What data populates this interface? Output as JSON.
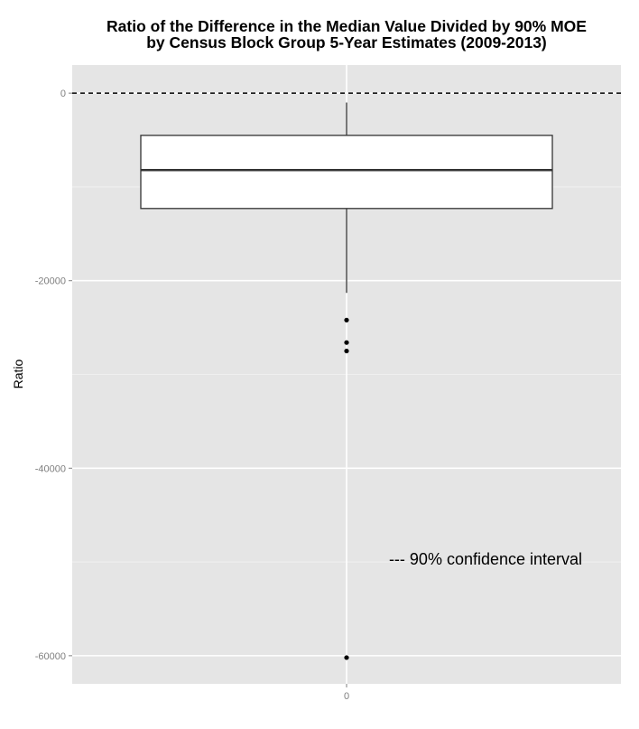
{
  "chart_data": {
    "type": "box",
    "title_lines": [
      "Ratio of the Difference in the Median Value Divided by 90% MOE",
      "by Census Block Group 5-Year Estimates (2009-2013)"
    ],
    "xlabel": "",
    "ylabel": "Ratio",
    "categories": [
      "0"
    ],
    "ylim": [
      -63000,
      3000
    ],
    "yticks": [
      0,
      -20000,
      -40000,
      -60000
    ],
    "ytick_labels": [
      "0",
      "-20000",
      "-40000",
      "-60000"
    ],
    "grid": true,
    "box": {
      "q1": -12300,
      "median": -8200,
      "q3": -4500,
      "whisker_low": -21300,
      "whisker_high": -1000,
      "outliers": [
        -24200,
        -26600,
        -27500,
        -60200
      ]
    },
    "reference_line": {
      "y": 0,
      "style": "dashed"
    },
    "annotation": "--- 90% confidence interval",
    "colors": {
      "panel_bg": "#e5e5e5",
      "grid_major": "#ffffff",
      "grid_minor": "#f2f2f2",
      "box_fill": "#ffffff",
      "box_stroke": "#333333",
      "outlier": "#000000"
    }
  }
}
